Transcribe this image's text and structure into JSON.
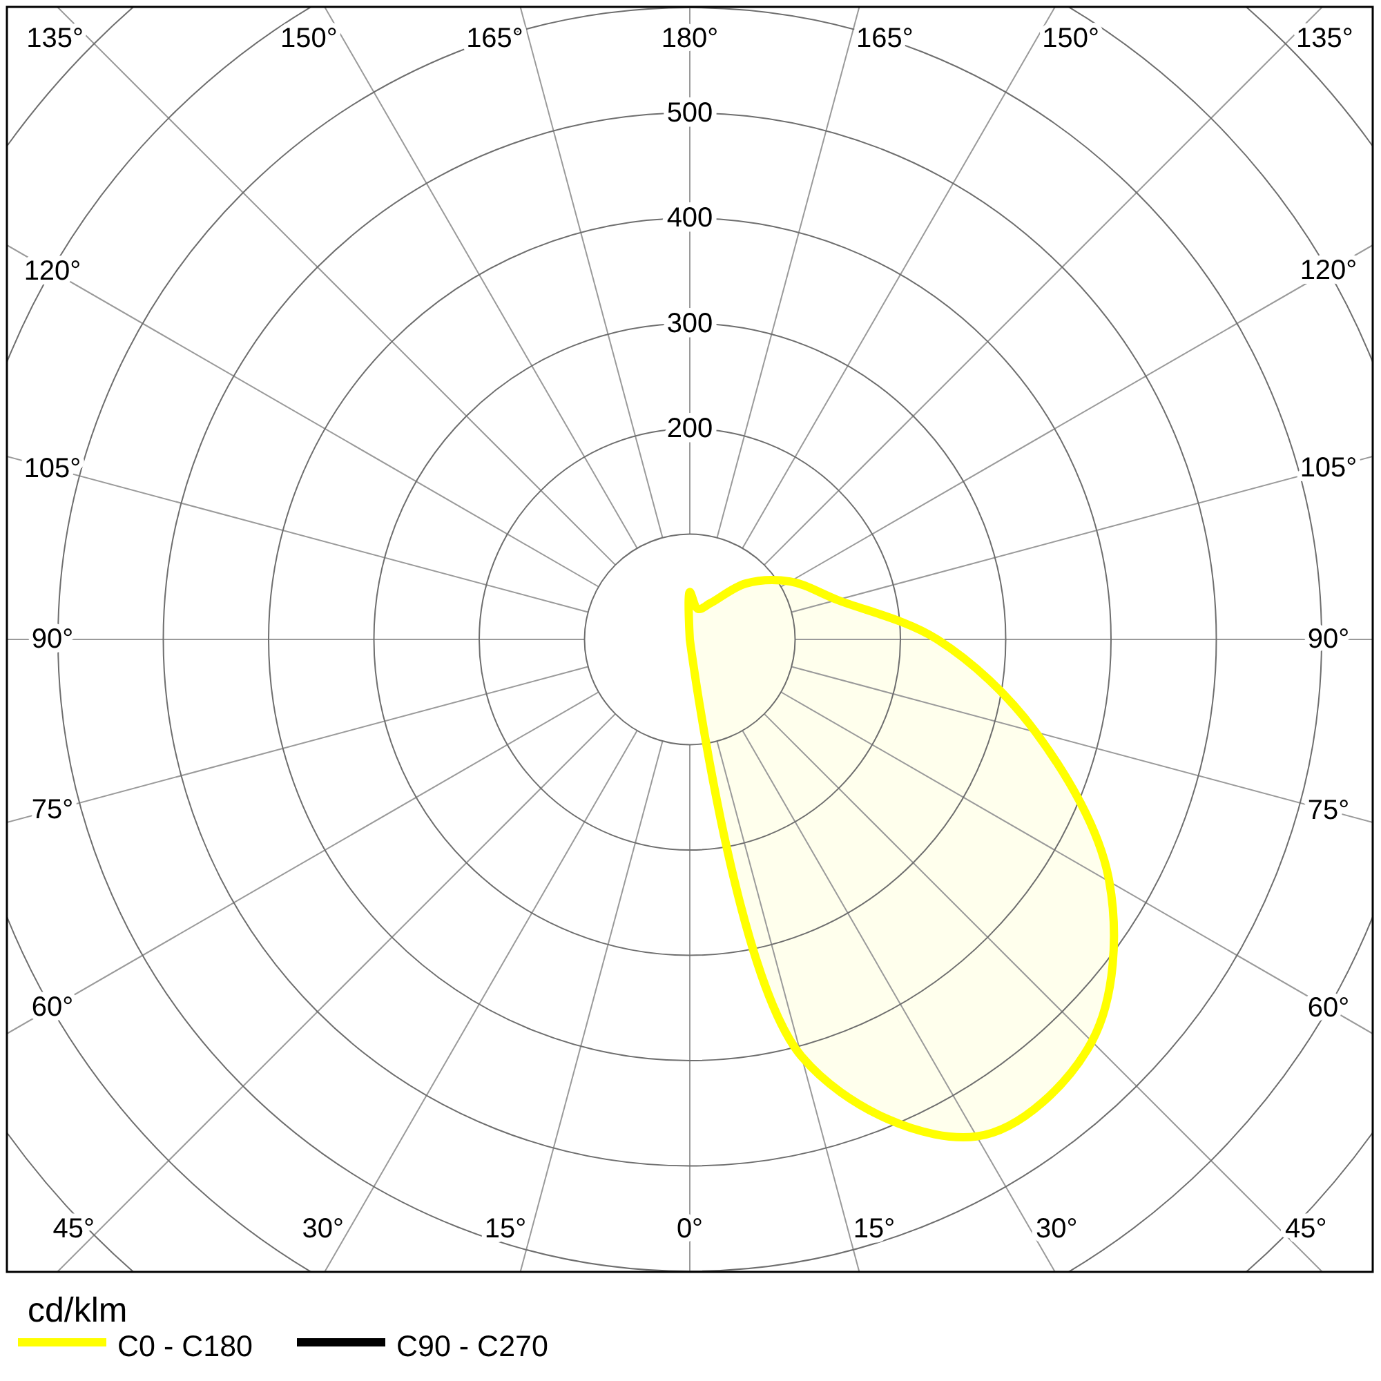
{
  "chart_data": {
    "type": "radar",
    "legend_title": "cd/klm",
    "categories": [
      "180°",
      "165°",
      "150°",
      "135°",
      "120°",
      "105°",
      "90°",
      "75°",
      "60°",
      "45°",
      "30°",
      "15°",
      "0°",
      "15°",
      "30°",
      "45°",
      "60°",
      "75°",
      "90°",
      "105°",
      "120°",
      "135°",
      "150°",
      "165°"
    ],
    "series": [
      {
        "name": "C0 - C180",
        "color": "#ffff00",
        "values": [
          45,
          30,
          40,
          75,
          110,
          145,
          235,
          340,
          460,
          540,
          545,
          410,
          0,
          0,
          0,
          0,
          0,
          0,
          0,
          0,
          0,
          0,
          0,
          0
        ]
      },
      {
        "name": "C90 - C270",
        "color": "#000000",
        "values": [
          null,
          null,
          null,
          null,
          null,
          null,
          null,
          null,
          null,
          null,
          null,
          null,
          null,
          null,
          null,
          null,
          null,
          null,
          null,
          null,
          null,
          null,
          null,
          null
        ]
      }
    ],
    "ylim": [
      0,
      800
    ],
    "yticks": [
      200,
      300,
      400,
      500
    ],
    "grid": true,
    "legend": "bottom left"
  }
}
